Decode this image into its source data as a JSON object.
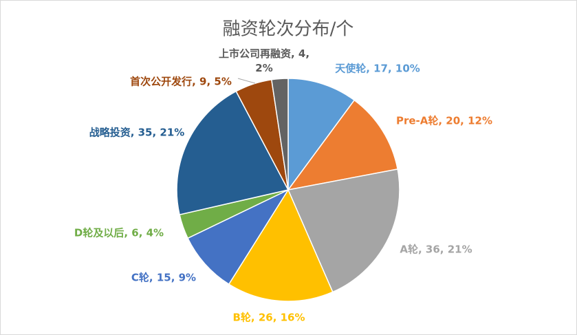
{
  "chart_data": {
    "type": "pie",
    "title": "融资轮次分布/个",
    "values": [
      17,
      20,
      36,
      26,
      15,
      6,
      35,
      9,
      4
    ],
    "value_labels": [
      "天使轮, 17, 10%",
      "Pre-A轮, 20, 12%",
      "A轮, 36, 21%",
      "B轮, 26, 16%",
      "C轮, 15, 9%",
      "D轮及以后, 6, 4%",
      "战略投资, 35, 21%",
      "首次公开发行, 9, 5%",
      "上市公司再融资, 4, 2%"
    ],
    "colors": [
      "#5b9bd5",
      "#ed7d31",
      "#a5a5a5",
      "#ffc000",
      "#4472c4",
      "#70ad47",
      "#255e91",
      "#9e480e",
      "#636363"
    ]
  }
}
